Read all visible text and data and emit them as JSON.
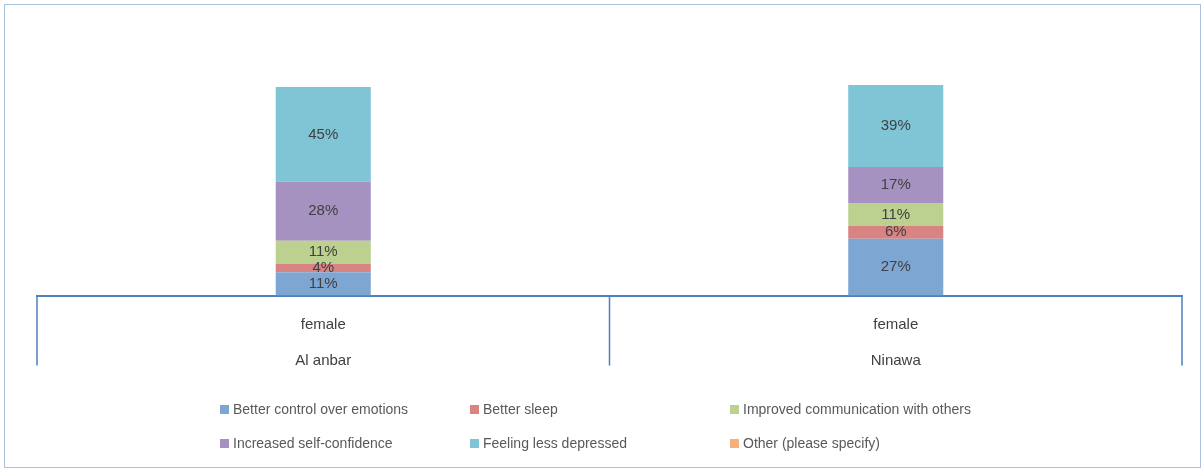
{
  "chart_data": {
    "type": "bar",
    "stacked": true,
    "categories": [
      "female\nAl anbar",
      "female\nNinawa"
    ],
    "ylim": [
      0,
      100
    ],
    "tick_labels": "x",
    "grid": false,
    "legend": "bottom",
    "series": [
      {
        "name": "Better control over emotions",
        "color": "#7ea6d3",
        "values": [
          11,
          27
        ],
        "value_labels": [
          "11%",
          "27%"
        ]
      },
      {
        "name": "Better sleep",
        "color": "#d98383",
        "values": [
          4,
          6
        ],
        "value_labels": [
          "4%",
          "6%"
        ]
      },
      {
        "name": "Improved communication with others",
        "color": "#bcd08f",
        "values": [
          11,
          11
        ],
        "value_labels": [
          "11%",
          "11%"
        ]
      },
      {
        "name": "Increased self-confidence",
        "color": "#a692c0",
        "values": [
          28,
          17
        ],
        "value_labels": [
          "28%",
          "17%"
        ]
      },
      {
        "name": "Feeling less depressed",
        "color": "#7fc5d6",
        "values": [
          45,
          39
        ],
        "value_labels": [
          "45%",
          "39%"
        ]
      },
      {
        "name": "Other (please specify)",
        "color": "#f7b07c",
        "values": [
          null,
          null
        ],
        "value_labels": [
          null,
          null
        ]
      }
    ]
  }
}
